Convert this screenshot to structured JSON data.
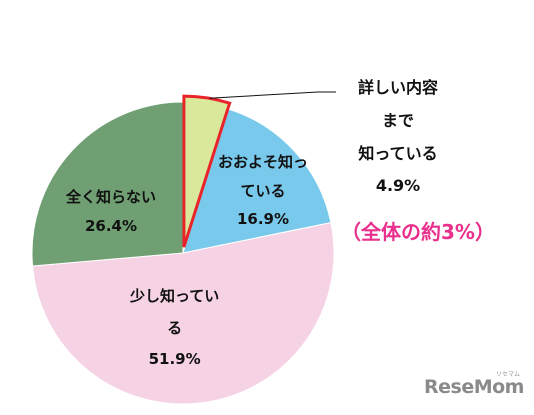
{
  "chart_data": {
    "type": "pie",
    "start_angle_deg": 0,
    "direction": "clockwise",
    "slices": [
      {
        "label": "詳しい内容まで知っている",
        "value": 4.9,
        "color": "#d9e89a",
        "highlight": true,
        "highlight_color": "#e8242a"
      },
      {
        "label": "おおよそ知っている",
        "value": 16.9,
        "color": "#79c9ec"
      },
      {
        "label": "少し知っている",
        "value": 51.9,
        "color": "#f5d2e4"
      },
      {
        "label": "全く知らない",
        "value": 26.4,
        "color": "#6f9f72"
      }
    ]
  },
  "labels": {
    "detailed": {
      "lines": [
        "詳しい内容",
        "まで",
        "知っている",
        "4.9%"
      ],
      "note": "（全体の約3%）"
    },
    "roughly": {
      "lines": [
        "おおよそ知っ",
        "ている",
        "16.9%"
      ]
    },
    "little": {
      "lines": [
        "少し知ってい",
        "る",
        "51.9%"
      ]
    },
    "none": {
      "lines": [
        "全く知らない",
        "26.4%"
      ]
    }
  },
  "watermark": {
    "text": "ReseMom",
    "subtext": "リセマム"
  }
}
